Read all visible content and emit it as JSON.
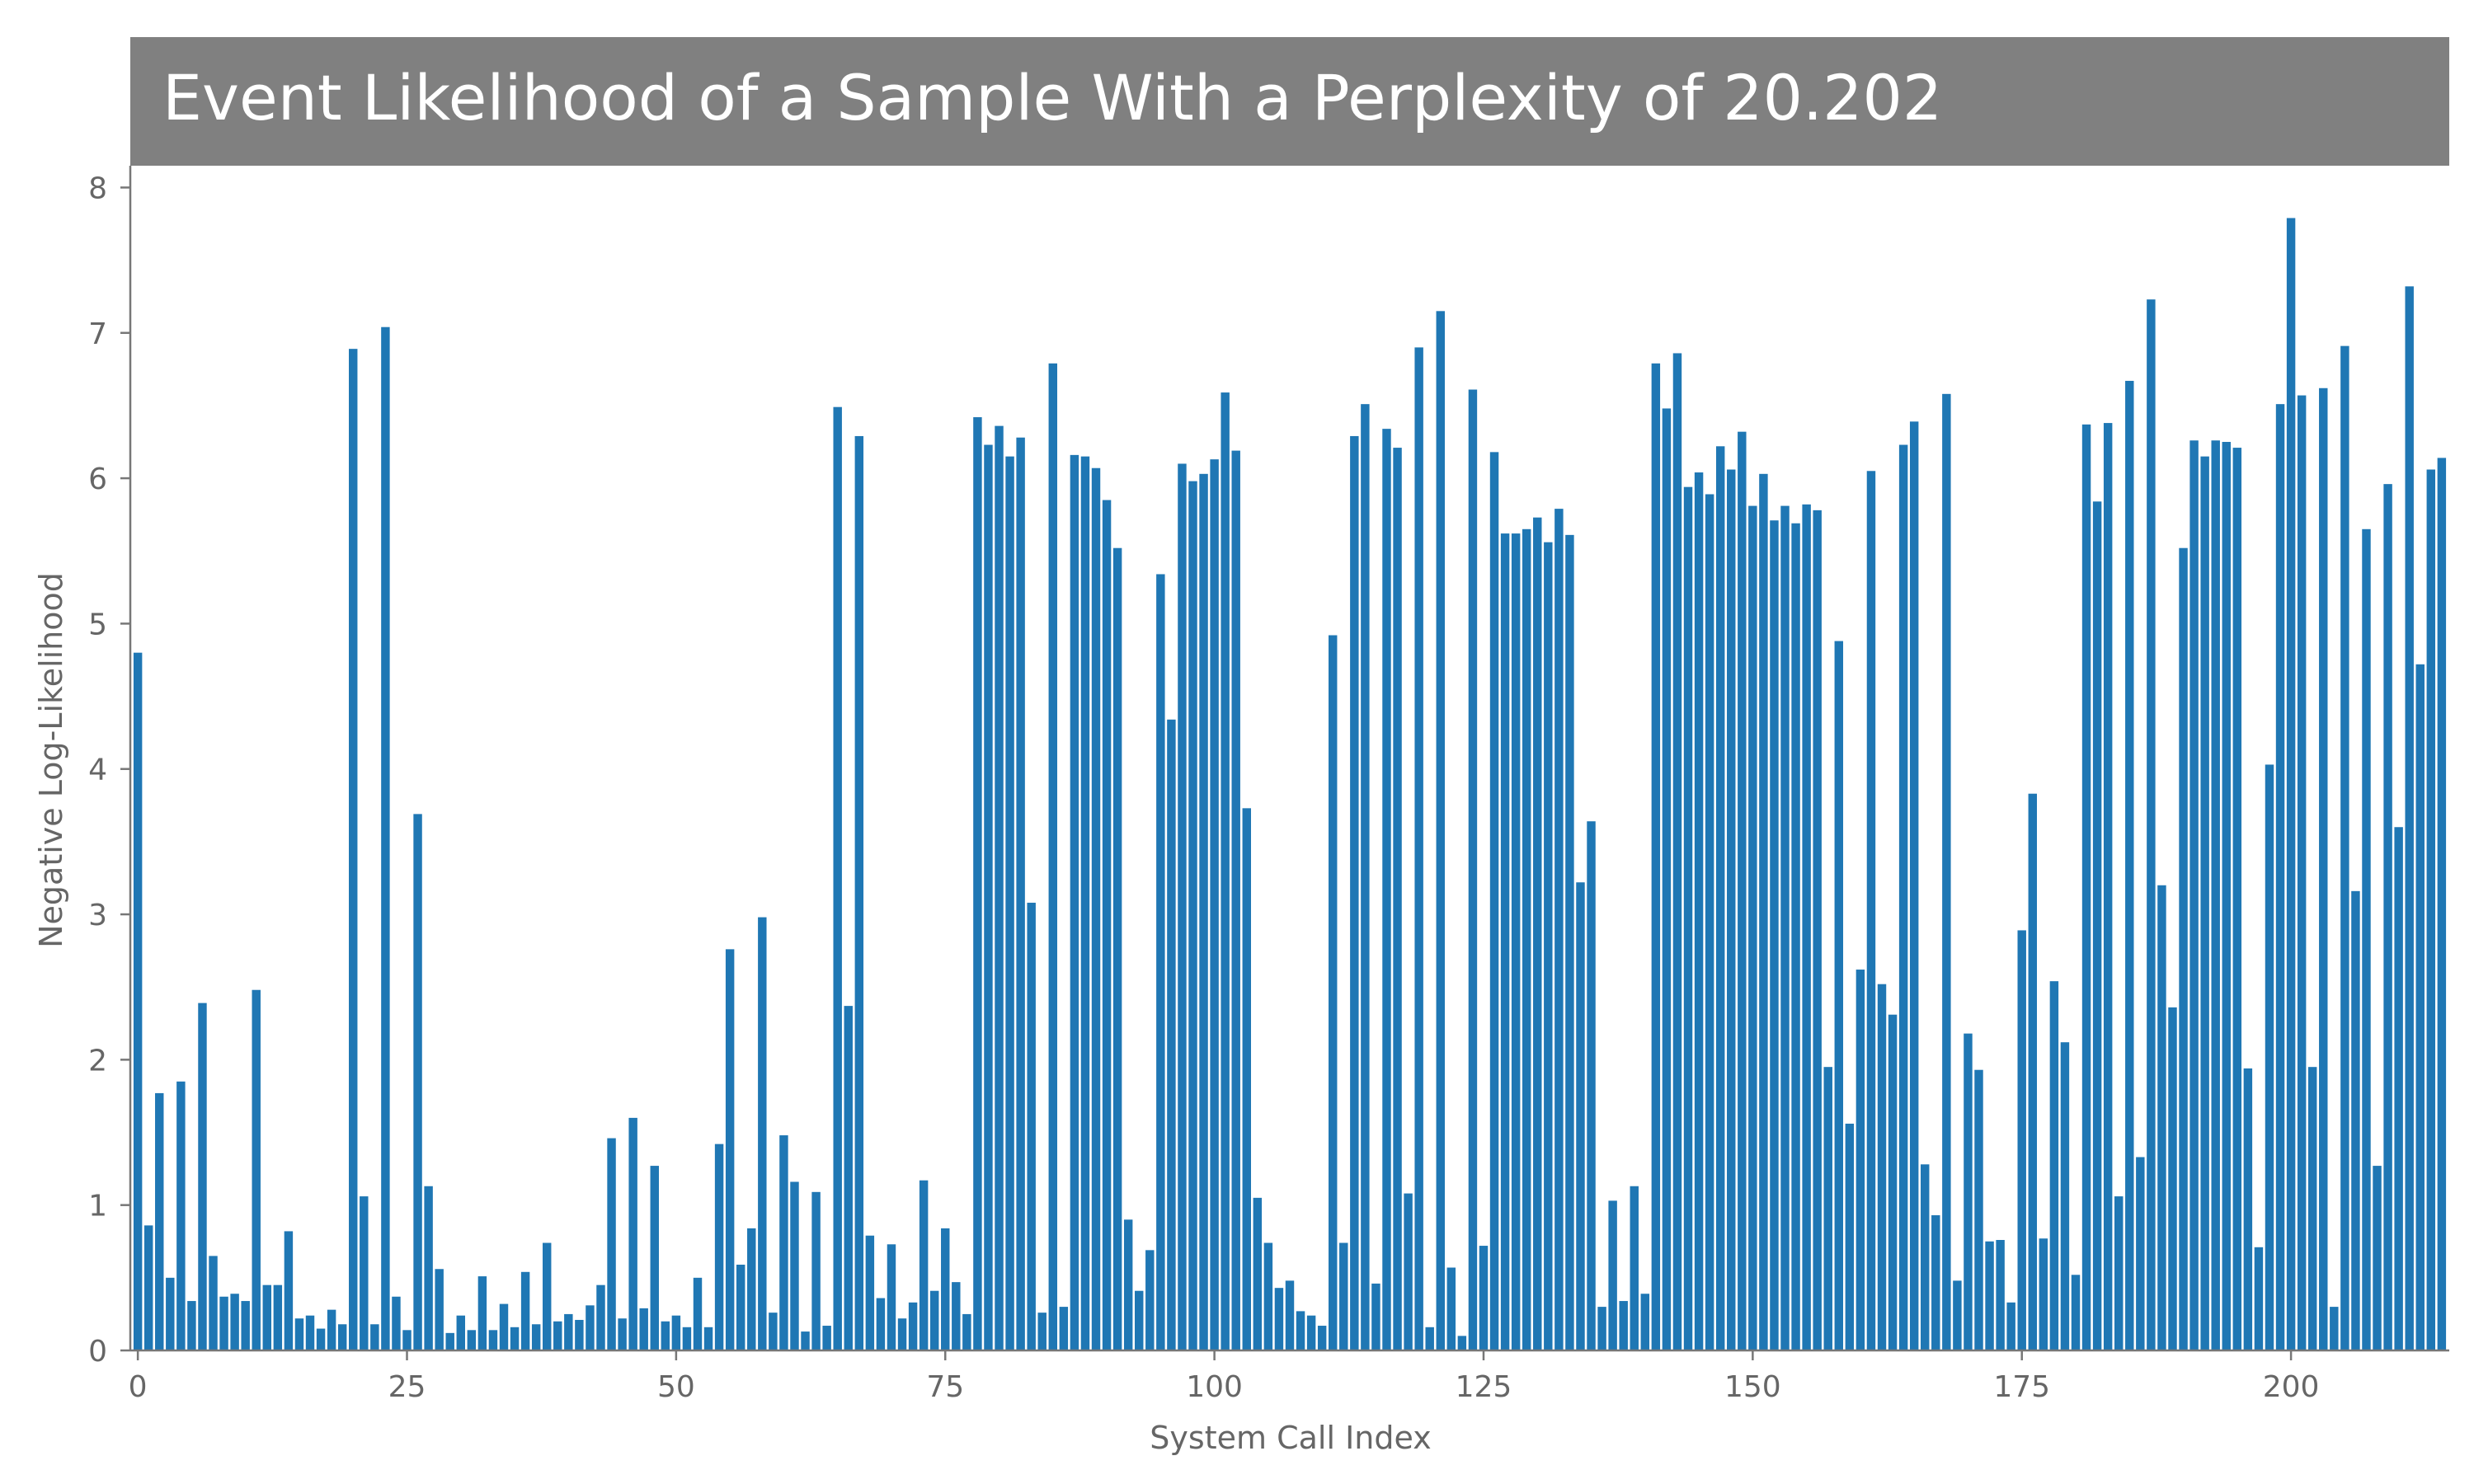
{
  "chart_data": {
    "type": "bar",
    "title": "Event Likelihood of a Sample With a Perplexity of 20.202",
    "xlabel": "System Call Index",
    "ylabel": "Negative Log-Likelihood",
    "xlim": [
      -0.7,
      214.7
    ],
    "ylim": [
      0,
      8.15
    ],
    "xticks": [
      0,
      25,
      50,
      75,
      100,
      125,
      150,
      175,
      200
    ],
    "yticks": [
      0,
      1,
      2,
      3,
      4,
      5,
      6,
      7,
      8
    ],
    "grid": false,
    "bar_color": "#1f77b4",
    "x_start": 0,
    "values": [
      4.8,
      0.86,
      1.77,
      0.5,
      1.85,
      0.34,
      2.39,
      0.65,
      0.37,
      0.39,
      0.34,
      2.48,
      0.45,
      0.45,
      0.82,
      0.22,
      0.24,
      0.15,
      0.28,
      0.18,
      6.89,
      1.06,
      0.18,
      7.04,
      0.37,
      0.14,
      3.69,
      1.13,
      0.56,
      0.12,
      0.24,
      0.14,
      0.51,
      0.14,
      0.32,
      0.16,
      0.54,
      0.18,
      0.74,
      0.2,
      0.25,
      0.21,
      0.31,
      0.45,
      1.46,
      0.22,
      1.6,
      0.29,
      1.27,
      0.2,
      0.24,
      0.16,
      0.5,
      0.16,
      1.42,
      2.76,
      0.59,
      0.84,
      2.98,
      0.26,
      1.48,
      1.16,
      0.13,
      1.09,
      0.17,
      6.49,
      2.37,
      6.29,
      0.79,
      0.36,
      0.73,
      0.22,
      0.33,
      1.17,
      0.41,
      0.84,
      0.47,
      0.25,
      6.42,
      6.23,
      6.36,
      6.15,
      6.28,
      3.08,
      0.26,
      6.79,
      0.3,
      6.16,
      6.15,
      6.07,
      5.85,
      5.52,
      0.9,
      0.41,
      0.69,
      5.34,
      4.34,
      6.1,
      5.98,
      6.03,
      6.13,
      6.59,
      6.19,
      3.73,
      1.05,
      0.74,
      0.43,
      0.48,
      0.27,
      0.24,
      0.17,
      4.92,
      0.74,
      6.29,
      6.51,
      0.46,
      6.34,
      6.21,
      1.08,
      6.9,
      0.16,
      7.15,
      0.57,
      0.1,
      6.61,
      0.72,
      6.18,
      5.62,
      5.62,
      5.65,
      5.73,
      5.56,
      5.79,
      5.61,
      3.22,
      3.64,
      0.3,
      1.03,
      0.34,
      1.13,
      0.39,
      6.79,
      6.48,
      6.86,
      5.94,
      6.04,
      5.89,
      6.22,
      6.06,
      6.32,
      5.81,
      6.03,
      5.71,
      5.81,
      5.69,
      5.82,
      5.78,
      1.95,
      4.88,
      1.56,
      2.62,
      6.05,
      2.52,
      2.31,
      6.23,
      6.39,
      1.28,
      0.93,
      6.58,
      0.48,
      2.18,
      1.93,
      0.75,
      0.76,
      0.33,
      2.89,
      3.83,
      0.77,
      2.54,
      2.12,
      0.52,
      6.37,
      5.84,
      6.38,
      1.06,
      6.67,
      1.33,
      7.23,
      3.2,
      2.36,
      5.52,
      6.26,
      6.15,
      6.26,
      6.25,
      6.21,
      1.94,
      0.71,
      4.03,
      6.51,
      7.79,
      6.57,
      1.95,
      6.62,
      0.3,
      6.91,
      3.16,
      5.65,
      1.27,
      5.96,
      3.6,
      7.32,
      4.72,
      6.06,
      6.14
    ]
  }
}
